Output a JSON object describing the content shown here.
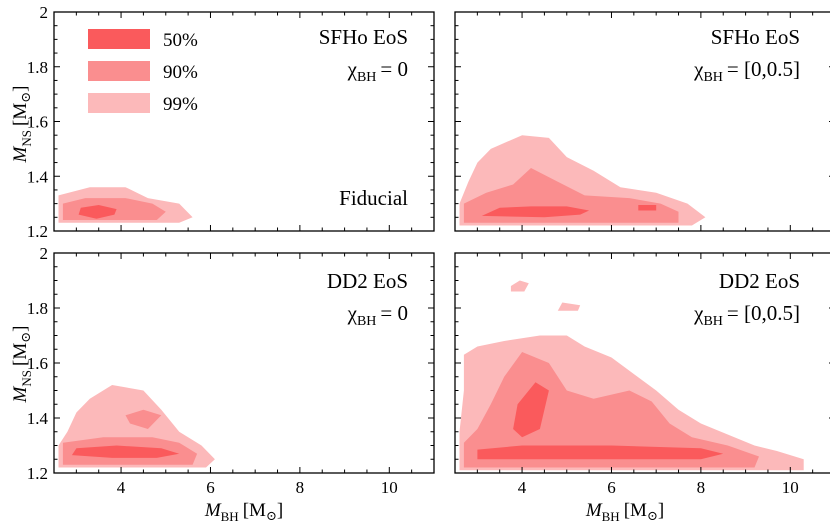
{
  "colors": {
    "c50": "#fa5a5c",
    "c90": "#fa8e8f",
    "c99": "#fcb9ba"
  },
  "legend": [
    {
      "label": "50%",
      "level": "c50"
    },
    {
      "label": "90%",
      "level": "c90"
    },
    {
      "label": "99%",
      "level": "c99"
    }
  ],
  "labels": {
    "ylabel_main": "M",
    "ylabel_sub": "NS",
    "ylabel_unit": "[M",
    "xlabel_main": "M",
    "xlabel_sub": "BH",
    "xlabel_unit": "[M",
    "sun_symbol": "⊙",
    "close_bracket": "]",
    "chi_symbol": "χ",
    "chi_sub": "BH"
  },
  "chart_data": [
    {
      "type": "contour",
      "panel": "top-left",
      "eos": "SFHo EoS",
      "chi_value": "= 0",
      "note": "Fiducial",
      "xlim": [
        2.5,
        11
      ],
      "ylim": [
        1.2,
        2.0
      ],
      "xticks": [
        4,
        6,
        8,
        10
      ],
      "yticks": [
        1.2,
        1.4,
        1.6,
        1.8,
        2.0
      ],
      "levels": [
        "99%",
        "90%",
        "50%"
      ],
      "regions": {
        "c99": [
          [
            [
              2.6,
              1.23
            ],
            [
              5.3,
              1.23
            ],
            [
              5.6,
              1.25
            ],
            [
              5.3,
              1.3
            ],
            [
              4.6,
              1.32
            ],
            [
              4.1,
              1.36
            ],
            [
              3.3,
              1.36
            ],
            [
              2.6,
              1.33
            ]
          ]
        ],
        "c90": [
          [
            [
              2.7,
              1.24
            ],
            [
              4.8,
              1.24
            ],
            [
              5.0,
              1.27
            ],
            [
              4.7,
              1.3
            ],
            [
              4.1,
              1.32
            ],
            [
              3.2,
              1.32
            ],
            [
              2.7,
              1.3
            ]
          ]
        ],
        "c50": [
          [
            [
              3.05,
              1.26
            ],
            [
              3.45,
              1.245
            ],
            [
              3.85,
              1.26
            ],
            [
              3.9,
              1.28
            ],
            [
              3.5,
              1.295
            ],
            [
              3.1,
              1.285
            ]
          ]
        ]
      }
    },
    {
      "type": "contour",
      "panel": "top-right",
      "eos": "SFHo EoS",
      "chi_value": "= [0,0.5]",
      "note": "",
      "xlim": [
        2.5,
        11
      ],
      "ylim": [
        1.2,
        2.0
      ],
      "xticks": [
        4,
        6,
        8,
        10
      ],
      "yticks": [
        1.2,
        1.4,
        1.6,
        1.8,
        2.0
      ],
      "levels": [
        "99%",
        "90%",
        "50%"
      ],
      "regions": {
        "c99": [
          [
            [
              2.6,
              1.22
            ],
            [
              7.8,
              1.22
            ],
            [
              8.1,
              1.25
            ],
            [
              7.7,
              1.3
            ],
            [
              7.0,
              1.34
            ],
            [
              6.2,
              1.36
            ],
            [
              5.6,
              1.42
            ],
            [
              5.0,
              1.47
            ],
            [
              4.6,
              1.54
            ],
            [
              4.0,
              1.55
            ],
            [
              3.3,
              1.5
            ],
            [
              3.0,
              1.45
            ],
            [
              2.8,
              1.38
            ],
            [
              2.6,
              1.3
            ]
          ]
        ],
        "c90": [
          [
            [
              2.7,
              1.23
            ],
            [
              7.5,
              1.23
            ],
            [
              7.5,
              1.27
            ],
            [
              7.1,
              1.3
            ],
            [
              6.4,
              1.32
            ],
            [
              5.4,
              1.33
            ],
            [
              4.8,
              1.38
            ],
            [
              4.2,
              1.43
            ],
            [
              3.8,
              1.37
            ],
            [
              3.2,
              1.34
            ],
            [
              2.7,
              1.3
            ]
          ]
        ],
        "c50": [
          [
            [
              3.1,
              1.255
            ],
            [
              4.5,
              1.25
            ],
            [
              5.3,
              1.26
            ],
            [
              5.5,
              1.275
            ],
            [
              5.0,
              1.29
            ],
            [
              4.2,
              1.29
            ],
            [
              3.5,
              1.285
            ]
          ],
          [
            [
              6.6,
              1.275
            ],
            [
              7.0,
              1.275
            ],
            [
              7.0,
              1.295
            ],
            [
              6.6,
              1.295
            ]
          ]
        ]
      }
    },
    {
      "type": "contour",
      "panel": "bottom-left",
      "eos": "DD2 EoS",
      "chi_value": "= 0",
      "note": "",
      "xlim": [
        2.5,
        11
      ],
      "ylim": [
        1.2,
        2.0
      ],
      "xticks": [
        4,
        6,
        8,
        10
      ],
      "yticks": [
        1.2,
        1.4,
        1.6,
        1.8,
        2.0
      ],
      "levels": [
        "99%",
        "90%",
        "50%"
      ],
      "regions": {
        "c99": [
          [
            [
              2.6,
              1.22
            ],
            [
              5.9,
              1.22
            ],
            [
              6.1,
              1.25
            ],
            [
              5.8,
              1.3
            ],
            [
              5.3,
              1.35
            ],
            [
              4.9,
              1.43
            ],
            [
              4.5,
              1.5
            ],
            [
              3.8,
              1.52
            ],
            [
              3.3,
              1.47
            ],
            [
              3.0,
              1.42
            ],
            [
              2.8,
              1.35
            ],
            [
              2.6,
              1.3
            ]
          ]
        ],
        "c90": [
          [
            [
              2.7,
              1.23
            ],
            [
              5.6,
              1.23
            ],
            [
              5.7,
              1.27
            ],
            [
              5.3,
              1.31
            ],
            [
              4.7,
              1.33
            ],
            [
              3.6,
              1.33
            ],
            [
              2.7,
              1.31
            ]
          ],
          [
            [
              4.2,
              1.38
            ],
            [
              4.6,
              1.36
            ],
            [
              4.9,
              1.41
            ],
            [
              4.5,
              1.43
            ],
            [
              4.1,
              1.41
            ]
          ]
        ],
        "c50": [
          [
            [
              2.9,
              1.265
            ],
            [
              3.8,
              1.255
            ],
            [
              4.8,
              1.255
            ],
            [
              5.3,
              1.27
            ],
            [
              4.9,
              1.29
            ],
            [
              3.9,
              1.3
            ],
            [
              3.0,
              1.29
            ]
          ]
        ]
      }
    },
    {
      "type": "contour",
      "panel": "bottom-right",
      "eos": "DD2 EoS",
      "chi_value": "= [0,0.5]",
      "note": "",
      "xlim": [
        2.5,
        11
      ],
      "ylim": [
        1.2,
        2.0
      ],
      "xticks": [
        4,
        6,
        8,
        10
      ],
      "yticks": [
        1.2,
        1.4,
        1.6,
        1.8,
        2.0
      ],
      "levels": [
        "99%",
        "90%",
        "50%"
      ],
      "regions": {
        "c99": [
          [
            [
              2.6,
              1.21
            ],
            [
              10.3,
              1.21
            ],
            [
              10.3,
              1.25
            ],
            [
              9.7,
              1.28
            ],
            [
              9.2,
              1.3
            ],
            [
              8.6,
              1.34
            ],
            [
              8.0,
              1.38
            ],
            [
              7.5,
              1.43
            ],
            [
              7.0,
              1.5
            ],
            [
              6.5,
              1.56
            ],
            [
              6.0,
              1.62
            ],
            [
              5.4,
              1.66
            ],
            [
              5.0,
              1.7
            ],
            [
              4.4,
              1.7
            ],
            [
              3.6,
              1.68
            ],
            [
              3.0,
              1.66
            ],
            [
              2.7,
              1.63
            ],
            [
              2.7,
              1.5
            ],
            [
              2.6,
              1.35
            ]
          ],
          [
            [
              3.75,
              1.86
            ],
            [
              4.05,
              1.86
            ],
            [
              4.15,
              1.89
            ],
            [
              3.95,
              1.9
            ],
            [
              3.75,
              1.88
            ]
          ],
          [
            [
              4.8,
              1.79
            ],
            [
              5.25,
              1.79
            ],
            [
              5.3,
              1.81
            ],
            [
              4.9,
              1.82
            ]
          ]
        ],
        "c90": [
          [
            [
              2.7,
              1.22
            ],
            [
              9.2,
              1.22
            ],
            [
              9.3,
              1.26
            ],
            [
              8.6,
              1.3
            ],
            [
              7.8,
              1.33
            ],
            [
              7.3,
              1.38
            ],
            [
              6.9,
              1.46
            ],
            [
              6.4,
              1.5
            ],
            [
              5.6,
              1.47
            ],
            [
              5.0,
              1.5
            ],
            [
              4.6,
              1.6
            ],
            [
              4.0,
              1.64
            ],
            [
              3.6,
              1.55
            ],
            [
              3.3,
              1.45
            ],
            [
              3.0,
              1.36
            ],
            [
              2.7,
              1.31
            ]
          ]
        ],
        "c50": [
          [
            [
              3.0,
              1.25
            ],
            [
              8.0,
              1.25
            ],
            [
              8.5,
              1.27
            ],
            [
              8.0,
              1.29
            ],
            [
              6.0,
              1.3
            ],
            [
              4.0,
              1.3
            ],
            [
              3.0,
              1.285
            ]
          ],
          [
            [
              4.0,
              1.33
            ],
            [
              4.4,
              1.36
            ],
            [
              4.6,
              1.5
            ],
            [
              4.3,
              1.53
            ],
            [
              3.9,
              1.45
            ],
            [
              3.8,
              1.36
            ]
          ]
        ]
      }
    }
  ]
}
